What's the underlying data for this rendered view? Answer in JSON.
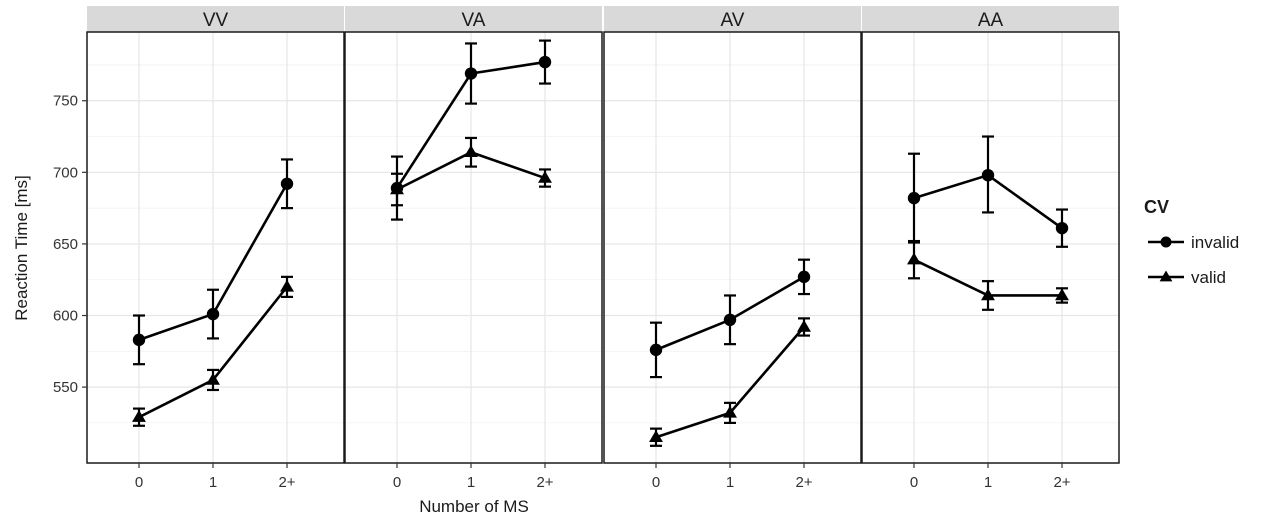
{
  "chart_data": {
    "type": "line",
    "xlabel": "Number of MS",
    "ylabel": "Reaction Time [ms]",
    "categories": [
      "0",
      "1",
      "2+"
    ],
    "ylim": [
      497,
      798
    ],
    "yticks": [
      550,
      600,
      650,
      700,
      750
    ],
    "grid": true,
    "legend": {
      "title": "CV",
      "position": "right",
      "entries": [
        {
          "label": "invalid",
          "marker": "circle"
        },
        {
          "label": "valid",
          "marker": "triangle"
        }
      ]
    },
    "panels": [
      {
        "title": "VV",
        "series": [
          {
            "name": "invalid",
            "values": [
              583,
              601,
              692
            ],
            "err_low": [
              566,
              584,
              675
            ],
            "err_high": [
              600,
              618,
              709
            ]
          },
          {
            "name": "valid",
            "values": [
              529,
              555,
              620
            ],
            "err_low": [
              523,
              548,
              613
            ],
            "err_high": [
              535,
              562,
              627
            ]
          }
        ]
      },
      {
        "title": "VA",
        "series": [
          {
            "name": "invalid",
            "values": [
              689,
              769,
              777
            ],
            "err_low": [
              667,
              748,
              762
            ],
            "err_high": [
              711,
              790,
              792
            ]
          },
          {
            "name": "valid",
            "values": [
              688,
              714,
              696
            ],
            "err_low": [
              677,
              704,
              690
            ],
            "err_high": [
              699,
              724,
              702
            ]
          }
        ]
      },
      {
        "title": "AV",
        "series": [
          {
            "name": "invalid",
            "values": [
              576,
              597,
              627
            ],
            "err_low": [
              557,
              580,
              615
            ],
            "err_high": [
              595,
              614,
              639
            ]
          },
          {
            "name": "valid",
            "values": [
              515,
              532,
              592
            ],
            "err_low": [
              509,
              525,
              586
            ],
            "err_high": [
              521,
              539,
              598
            ]
          }
        ]
      },
      {
        "title": "AA",
        "series": [
          {
            "name": "invalid",
            "values": [
              682,
              698,
              661
            ],
            "err_low": [
              651,
              672,
              648
            ],
            "err_high": [
              713,
              725,
              674
            ]
          },
          {
            "name": "valid",
            "values": [
              639,
              614,
              614
            ],
            "err_low": [
              626,
              604,
              609
            ],
            "err_high": [
              652,
              624,
              619
            ]
          }
        ]
      }
    ]
  }
}
